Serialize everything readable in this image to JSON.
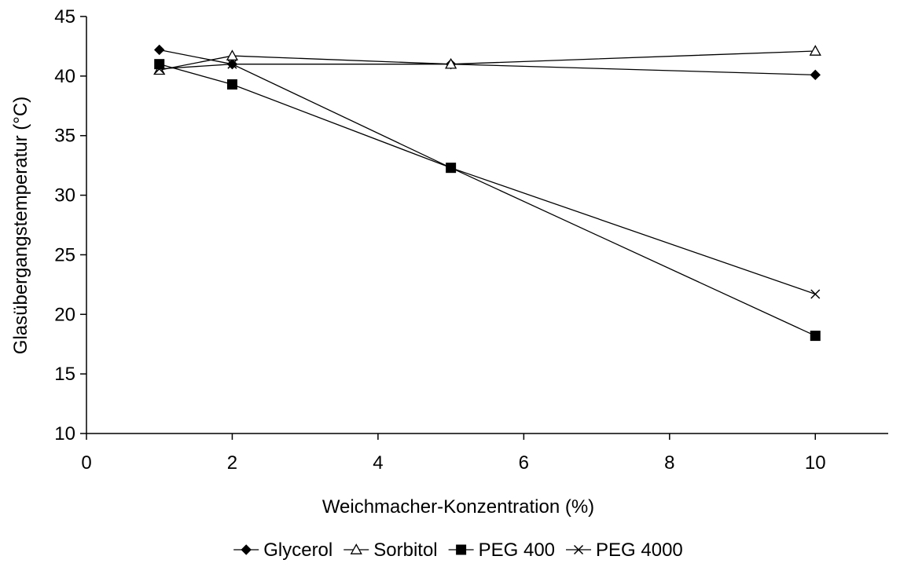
{
  "chart_data": {
    "type": "line",
    "title": "",
    "xlabel": "Weichmacher-Konzentration (%)",
    "ylabel": "Glasübergangstemperatur (°C)",
    "xlim": [
      0,
      11
    ],
    "ylim": [
      10,
      45
    ],
    "x_ticks": [
      0,
      2,
      4,
      6,
      8,
      10
    ],
    "y_ticks": [
      10,
      15,
      20,
      25,
      30,
      35,
      40,
      45
    ],
    "x_tick_labels": [
      "0",
      "2",
      "4",
      "6",
      "8",
      "10"
    ],
    "y_tick_labels": [
      "10",
      "15",
      "20",
      "25",
      "30",
      "35",
      "40",
      "45"
    ],
    "grid": false,
    "legend_position": "bottom",
    "line_color": "#000000",
    "series": [
      {
        "name": "Glycerol",
        "marker": "filled-diamond",
        "x": [
          1,
          2,
          5,
          10
        ],
        "y": [
          42.2,
          41.0,
          41.0,
          40.1
        ]
      },
      {
        "name": "Sorbitol",
        "marker": "open-triangle",
        "x": [
          1,
          2,
          5,
          10
        ],
        "y": [
          40.5,
          41.7,
          41.0,
          42.1
        ]
      },
      {
        "name": "PEG 400",
        "marker": "filled-square",
        "x": [
          1,
          2,
          5,
          10
        ],
        "y": [
          41.0,
          39.3,
          32.3,
          18.2
        ]
      },
      {
        "name": "PEG 4000",
        "marker": "x-cross",
        "x": [
          1,
          2,
          5,
          10
        ],
        "y": [
          40.6,
          41.0,
          32.3,
          21.7
        ]
      }
    ]
  }
}
